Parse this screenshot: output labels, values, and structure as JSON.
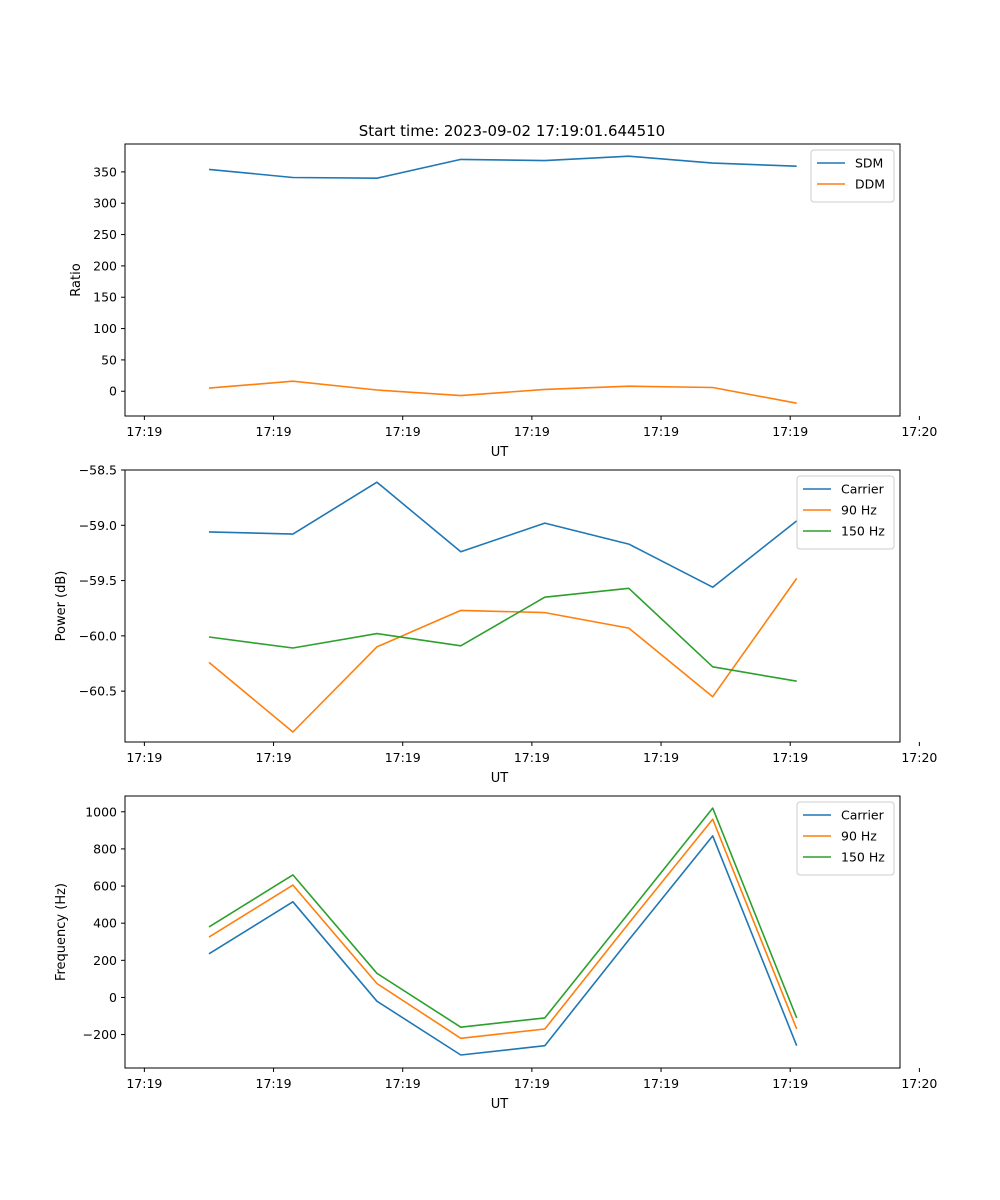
{
  "figure_title": "Start time: 2023-09-02 17:19:01.644510",
  "chart_data": [
    {
      "type": "line",
      "title": "Start time: 2023-09-02 17:19:01.644510",
      "xlabel": "UT",
      "ylabel": "Ratio",
      "x": [
        0.5,
        1.15,
        1.8,
        2.45,
        3.1,
        3.75,
        4.4,
        5.05
      ],
      "xlim": [
        -0.15,
        5.85
      ],
      "xticks": [
        0,
        1,
        2,
        3,
        4,
        5,
        6
      ],
      "xtick_labels": [
        "17:19",
        "17:19",
        "17:19",
        "17:19",
        "17:19",
        "17:19",
        "17:20"
      ],
      "ylim": [
        -39.5,
        394.5
      ],
      "yticks": [
        0,
        50,
        100,
        150,
        200,
        250,
        300,
        350
      ],
      "ytick_labels": [
        "0",
        "50",
        "100",
        "150",
        "200",
        "250",
        "300",
        "350"
      ],
      "legend_position": "top-right",
      "series": [
        {
          "name": "SDM",
          "color": "#1f77b4",
          "values": [
            354,
            341,
            340,
            370,
            368,
            375,
            364,
            359
          ]
        },
        {
          "name": "DDM",
          "color": "#ff7f0e",
          "values": [
            5,
            16,
            2,
            -7,
            3,
            8,
            6,
            -19
          ]
        }
      ]
    },
    {
      "type": "line",
      "xlabel": "UT",
      "ylabel": "Power (dB)",
      "x": [
        0.5,
        1.15,
        1.8,
        2.45,
        3.1,
        3.75,
        4.4,
        5.05
      ],
      "xlim": [
        -0.15,
        5.85
      ],
      "xticks": [
        0,
        1,
        2,
        3,
        4,
        5,
        6
      ],
      "xtick_labels": [
        "17:19",
        "17:19",
        "17:19",
        "17:19",
        "17:19",
        "17:19",
        "17:20"
      ],
      "ylim": [
        -60.96,
        -58.5
      ],
      "yticks": [
        -58.5,
        -59.0,
        -59.5,
        -60.0,
        -60.5
      ],
      "ytick_labels": [
        "−58.5",
        "−59.0",
        "−59.5",
        "−60.0",
        "−60.5"
      ],
      "legend_position": "top-right",
      "series": [
        {
          "name": "Carrier",
          "color": "#1f77b4",
          "values": [
            -59.06,
            -59.08,
            -58.61,
            -59.24,
            -58.98,
            -59.17,
            -59.56,
            -58.96
          ]
        },
        {
          "name": "90 Hz",
          "color": "#ff7f0e",
          "values": [
            -60.24,
            -60.87,
            -60.1,
            -59.77,
            -59.79,
            -59.93,
            -60.55,
            -59.48
          ]
        },
        {
          "name": "150 Hz",
          "color": "#2ca02c",
          "values": [
            -60.01,
            -60.11,
            -59.98,
            -60.09,
            -59.65,
            -59.57,
            -60.28,
            -60.41
          ]
        }
      ]
    },
    {
      "type": "line",
      "xlabel": "UT",
      "ylabel": "Frequency (Hz)",
      "x": [
        0.5,
        1.15,
        1.8,
        2.45,
        3.1,
        3.75,
        4.4,
        5.05
      ],
      "xlim": [
        -0.15,
        5.85
      ],
      "xticks": [
        0,
        1,
        2,
        3,
        4,
        5,
        6
      ],
      "xtick_labels": [
        "17:19",
        "17:19",
        "17:19",
        "17:19",
        "17:19",
        "17:19",
        "17:20"
      ],
      "ylim": [
        -380,
        1085
      ],
      "yticks": [
        -200,
        0,
        200,
        400,
        600,
        800,
        1000
      ],
      "ytick_labels": [
        "−200",
        "0",
        "200",
        "400",
        "600",
        "800",
        "1000"
      ],
      "legend_position": "top-right",
      "series": [
        {
          "name": "Carrier",
          "color": "#1f77b4",
          "values": [
            235,
            515,
            -20,
            -310,
            -260,
            310,
            870,
            -260
          ]
        },
        {
          "name": "90 Hz",
          "color": "#ff7f0e",
          "values": [
            325,
            605,
            75,
            -220,
            -170,
            400,
            960,
            -170
          ]
        },
        {
          "name": "150 Hz",
          "color": "#2ca02c",
          "values": [
            380,
            660,
            130,
            -160,
            -110,
            455,
            1020,
            -110
          ]
        }
      ]
    }
  ]
}
